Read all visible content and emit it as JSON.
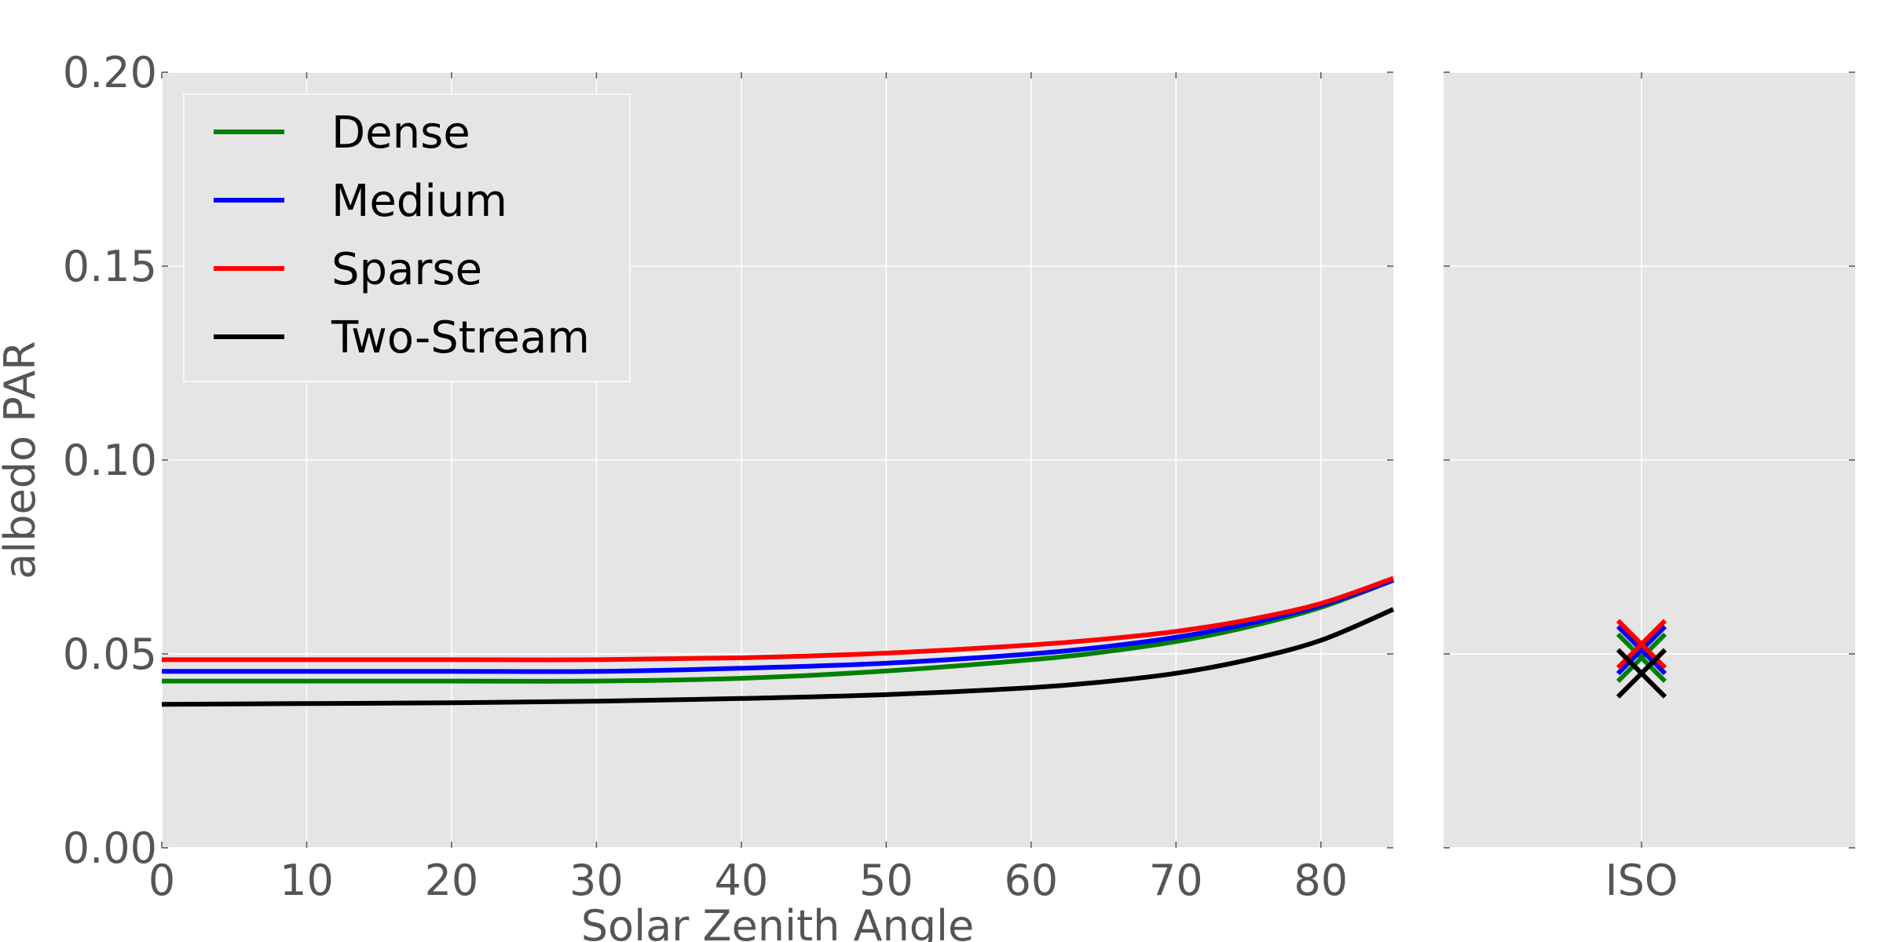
{
  "chart_data": [
    {
      "type": "line",
      "xlabel": "Solar Zenith Angle",
      "ylabel": "albedo PAR",
      "xlim": [
        0,
        85
      ],
      "ylim": [
        0.0,
        0.2
      ],
      "xticks": [
        "0",
        "10",
        "20",
        "30",
        "40",
        "50",
        "60",
        "70",
        "80"
      ],
      "yticks": [
        "0.00",
        "0.05",
        "0.10",
        "0.15",
        "0.20"
      ],
      "grid": true,
      "legend_position": "top-left",
      "x": [
        0,
        10,
        20,
        30,
        40,
        50,
        60,
        65,
        70,
        75,
        80,
        85
      ],
      "series": [
        {
          "name": "Dense",
          "color": "#008000",
          "values": [
            0.043,
            0.043,
            0.043,
            0.043,
            0.0437,
            0.0456,
            0.0485,
            0.0505,
            0.0532,
            0.057,
            0.062,
            0.069
          ]
        },
        {
          "name": "Medium",
          "color": "#0000ff",
          "values": [
            0.0455,
            0.0455,
            0.0455,
            0.0455,
            0.0463,
            0.0476,
            0.05,
            0.0518,
            0.0543,
            0.0578,
            0.0625,
            0.069
          ]
        },
        {
          "name": "Sparse",
          "color": "#ff0000",
          "values": [
            0.0485,
            0.0485,
            0.0485,
            0.0485,
            0.049,
            0.0502,
            0.0523,
            0.0538,
            0.0558,
            0.0588,
            0.063,
            0.0695
          ]
        },
        {
          "name": "Two-Stream",
          "color": "#000000",
          "values": [
            0.037,
            0.0372,
            0.0374,
            0.0378,
            0.0385,
            0.0395,
            0.0413,
            0.0428,
            0.045,
            0.0485,
            0.0535,
            0.0615
          ]
        }
      ]
    },
    {
      "type": "scatter",
      "xticks": [
        "ISO"
      ],
      "ylim": [
        0.0,
        0.2
      ],
      "marker": "x",
      "grid": true,
      "points": [
        {
          "series": "Dense",
          "color": "#008000",
          "y": 0.049
        },
        {
          "series": "Medium",
          "color": "#0000ff",
          "y": 0.051
        },
        {
          "series": "Sparse",
          "color": "#ff0000",
          "y": 0.0525
        },
        {
          "series": "Two-Stream",
          "color": "#000000",
          "y": 0.045
        }
      ]
    }
  ]
}
